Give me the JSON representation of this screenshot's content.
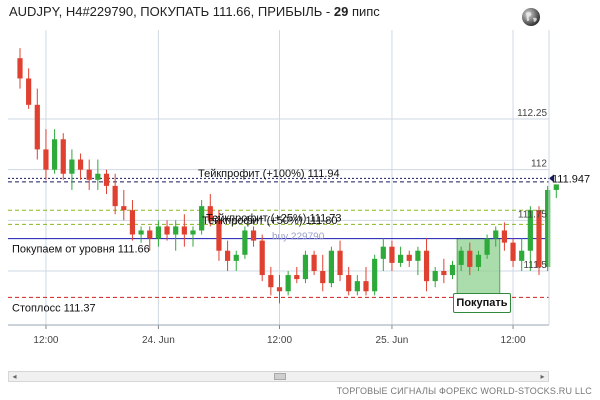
{
  "header": {
    "prefix": "AUDJPY, H4#229790, ПОКУПАТЬ 111.66, ПРИБЫЛЬ - ",
    "pips": "29",
    "suffix": " пипс"
  },
  "icons": {
    "globe": "globe-icon"
  },
  "buy_button_label": "Покупать",
  "scrollbar": {
    "left_arrow": "◂",
    "right_arrow": "▸"
  },
  "footer": "ТОРГОВЫЕ СИГНАЛЫ ФОРЕКС WORLD-STOCKS.RU LLC",
  "colors": {
    "bull": "#2eaa3a",
    "bear": "#e04030",
    "entry_line": "#1a1ab0",
    "tp_line": "#88b820",
    "sl_line": "#d02020",
    "current_line": "#1a1a60",
    "grid": "#cfd8e4",
    "trade_box": "#8fd08f"
  },
  "chart_data": {
    "type": "candlestick",
    "symbol": "AUDJPY",
    "timeframe": "H4",
    "ylim": [
      111.2,
      112.7
    ],
    "y_ticks": [
      112.25,
      112,
      111.75,
      111.5
    ],
    "y_tick_labels": [
      "112.25",
      "112",
      "111.75",
      "111.5"
    ],
    "x_tick_labels": [
      "12:00",
      "24. Jun",
      "12:00",
      "25. Jun",
      "12:00"
    ],
    "x_tick_candle_index": [
      3,
      16,
      30,
      43,
      57
    ],
    "current_price": 111.947,
    "current_price_label": "111.947",
    "levels": [
      {
        "name": "take-profit-100",
        "label": "Тейкпрофит (+100%) 111.94",
        "value": 111.94,
        "color": "#1a1a60",
        "style": "dashed"
      },
      {
        "name": "take-profit-50",
        "label": "Тейкпрофит (+50%) 111.80",
        "value": 111.8,
        "color": "#88b820",
        "style": "dashed"
      },
      {
        "name": "take-profit-25",
        "label": "Тейкпрофит (+25%) 111.73",
        "value": 111.73,
        "color": "#88b820",
        "style": "dashed"
      },
      {
        "name": "entry",
        "label": "Покупаем от уровня 111.66",
        "value": 111.66,
        "color": "#1a1ab0",
        "style": "solid"
      },
      {
        "name": "stop-loss",
        "label": "Стоплосс 111.37",
        "value": 111.37,
        "color": "#d02020",
        "style": "dashed"
      }
    ],
    "entry_marker_label": "buy 229790",
    "trade_zone": {
      "from_candle": 51,
      "to_candle": 55,
      "low": 111.38,
      "high": 111.66
    },
    "candles": [
      {
        "o": 112.55,
        "h": 112.6,
        "l": 112.4,
        "c": 112.45
      },
      {
        "o": 112.45,
        "h": 112.5,
        "l": 112.3,
        "c": 112.32
      },
      {
        "o": 112.32,
        "h": 112.4,
        "l": 112.05,
        "c": 112.1
      },
      {
        "o": 112.1,
        "h": 112.2,
        "l": 111.95,
        "c": 112.0
      },
      {
        "o": 112.0,
        "h": 112.2,
        "l": 111.98,
        "c": 112.15
      },
      {
        "o": 112.15,
        "h": 112.18,
        "l": 111.95,
        "c": 111.98
      },
      {
        "o": 111.98,
        "h": 112.1,
        "l": 111.9,
        "c": 112.05
      },
      {
        "o": 112.05,
        "h": 112.08,
        "l": 111.95,
        "c": 112.0
      },
      {
        "o": 112.0,
        "h": 112.05,
        "l": 111.9,
        "c": 111.95
      },
      {
        "o": 111.95,
        "h": 112.05,
        "l": 111.9,
        "c": 111.98
      },
      {
        "o": 111.98,
        "h": 112.0,
        "l": 111.88,
        "c": 111.92
      },
      {
        "o": 111.92,
        "h": 111.98,
        "l": 111.78,
        "c": 111.82
      },
      {
        "o": 111.82,
        "h": 111.9,
        "l": 111.75,
        "c": 111.8
      },
      {
        "o": 111.8,
        "h": 111.85,
        "l": 111.65,
        "c": 111.68
      },
      {
        "o": 111.68,
        "h": 111.72,
        "l": 111.64,
        "c": 111.7
      },
      {
        "o": 111.7,
        "h": 111.72,
        "l": 111.6,
        "c": 111.66
      },
      {
        "o": 111.66,
        "h": 111.75,
        "l": 111.62,
        "c": 111.72
      },
      {
        "o": 111.72,
        "h": 111.75,
        "l": 111.65,
        "c": 111.68
      },
      {
        "o": 111.68,
        "h": 111.75,
        "l": 111.6,
        "c": 111.72
      },
      {
        "o": 111.72,
        "h": 111.78,
        "l": 111.62,
        "c": 111.68
      },
      {
        "o": 111.68,
        "h": 111.72,
        "l": 111.62,
        "c": 111.7
      },
      {
        "o": 111.7,
        "h": 111.85,
        "l": 111.68,
        "c": 111.82
      },
      {
        "o": 111.82,
        "h": 111.88,
        "l": 111.72,
        "c": 111.75
      },
      {
        "o": 111.75,
        "h": 111.8,
        "l": 111.55,
        "c": 111.6
      },
      {
        "o": 111.6,
        "h": 111.65,
        "l": 111.5,
        "c": 111.55
      },
      {
        "o": 111.55,
        "h": 111.6,
        "l": 111.5,
        "c": 111.58
      },
      {
        "o": 111.58,
        "h": 111.72,
        "l": 111.56,
        "c": 111.7
      },
      {
        "o": 111.7,
        "h": 111.72,
        "l": 111.62,
        "c": 111.65
      },
      {
        "o": 111.65,
        "h": 111.68,
        "l": 111.45,
        "c": 111.48
      },
      {
        "o": 111.48,
        "h": 111.52,
        "l": 111.38,
        "c": 111.42
      },
      {
        "o": 111.42,
        "h": 111.48,
        "l": 111.34,
        "c": 111.4
      },
      {
        "o": 111.4,
        "h": 111.5,
        "l": 111.38,
        "c": 111.48
      },
      {
        "o": 111.48,
        "h": 111.52,
        "l": 111.44,
        "c": 111.46
      },
      {
        "o": 111.46,
        "h": 111.6,
        "l": 111.44,
        "c": 111.58
      },
      {
        "o": 111.58,
        "h": 111.6,
        "l": 111.48,
        "c": 111.5
      },
      {
        "o": 111.5,
        "h": 111.58,
        "l": 111.4,
        "c": 111.44
      },
      {
        "o": 111.44,
        "h": 111.62,
        "l": 111.42,
        "c": 111.6
      },
      {
        "o": 111.6,
        "h": 111.65,
        "l": 111.45,
        "c": 111.48
      },
      {
        "o": 111.48,
        "h": 111.52,
        "l": 111.38,
        "c": 111.4
      },
      {
        "o": 111.4,
        "h": 111.48,
        "l": 111.38,
        "c": 111.45
      },
      {
        "o": 111.45,
        "h": 111.52,
        "l": 111.38,
        "c": 111.4
      },
      {
        "o": 111.4,
        "h": 111.58,
        "l": 111.38,
        "c": 111.56
      },
      {
        "o": 111.56,
        "h": 111.66,
        "l": 111.5,
        "c": 111.62
      },
      {
        "o": 111.62,
        "h": 111.65,
        "l": 111.5,
        "c": 111.54
      },
      {
        "o": 111.54,
        "h": 111.62,
        "l": 111.52,
        "c": 111.58
      },
      {
        "o": 111.58,
        "h": 111.6,
        "l": 111.52,
        "c": 111.55
      },
      {
        "o": 111.55,
        "h": 111.62,
        "l": 111.48,
        "c": 111.6
      },
      {
        "o": 111.6,
        "h": 111.66,
        "l": 111.4,
        "c": 111.45
      },
      {
        "o": 111.45,
        "h": 111.52,
        "l": 111.42,
        "c": 111.5
      },
      {
        "o": 111.5,
        "h": 111.56,
        "l": 111.44,
        "c": 111.48
      },
      {
        "o": 111.48,
        "h": 111.55,
        "l": 111.46,
        "c": 111.53
      },
      {
        "o": 111.53,
        "h": 111.62,
        "l": 111.5,
        "c": 111.6
      },
      {
        "o": 111.6,
        "h": 111.64,
        "l": 111.48,
        "c": 111.52
      },
      {
        "o": 111.52,
        "h": 111.6,
        "l": 111.5,
        "c": 111.58
      },
      {
        "o": 111.58,
        "h": 111.68,
        "l": 111.56,
        "c": 111.66
      },
      {
        "o": 111.66,
        "h": 111.72,
        "l": 111.62,
        "c": 111.7
      },
      {
        "o": 111.7,
        "h": 111.74,
        "l": 111.6,
        "c": 111.64
      },
      {
        "o": 111.64,
        "h": 111.66,
        "l": 111.52,
        "c": 111.55
      },
      {
        "o": 111.55,
        "h": 111.66,
        "l": 111.5,
        "c": 111.6
      },
      {
        "o": 111.6,
        "h": 111.82,
        "l": 111.5,
        "c": 111.8
      },
      {
        "o": 111.8,
        "h": 111.82,
        "l": 111.48,
        "c": 111.52
      },
      {
        "o": 111.52,
        "h": 111.92,
        "l": 111.5,
        "c": 111.9
      },
      {
        "o": 111.9,
        "h": 111.96,
        "l": 111.86,
        "c": 111.947
      }
    ]
  }
}
